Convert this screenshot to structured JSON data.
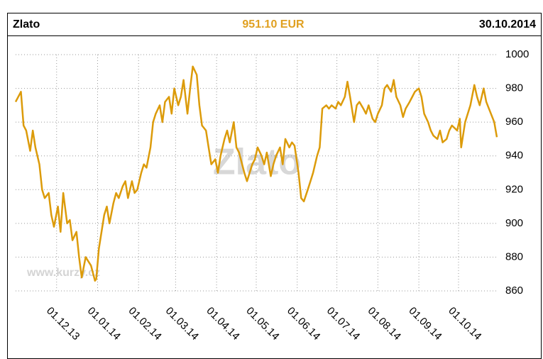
{
  "chart_data": {
    "type": "line",
    "title": "Zlato",
    "subtitle": "951.10 EUR",
    "date": "30.10.2014",
    "watermark": "Zlato",
    "source": "www.kurzy.cz",
    "xlim": [
      "31.10.13",
      "30.10.14"
    ],
    "xticks": [
      "01.12.13",
      "01.01.14",
      "01.02.14",
      "01.03.14",
      "01.04.14",
      "01.05.14",
      "01.06.14",
      "01.07.14",
      "01.08.14",
      "01.09.14",
      "01.10.14"
    ],
    "ylim": [
      860,
      1000
    ],
    "yticks": [
      860,
      880,
      900,
      920,
      940,
      960,
      980,
      1000
    ],
    "grid": true,
    "series": [
      {
        "name": "Zlato",
        "color": "#dc9b0a",
        "x": [
          "31.10.13",
          "04.11.13",
          "06.11.13",
          "08.11.13",
          "11.11.13",
          "13.11.13",
          "15.11.13",
          "18.11.13",
          "20.11.13",
          "22.11.13",
          "25.11.13",
          "27.11.13",
          "29.11.13",
          "02.12.13",
          "04.12.13",
          "06.12.13",
          "09.12.13",
          "11.12.13",
          "13.12.13",
          "16.12.13",
          "18.12.13",
          "20.12.13",
          "23.12.13",
          "27.12.13",
          "30.12.13",
          "31.12.13",
          "02.01.14",
          "06.01.14",
          "08.01.14",
          "10.01.14",
          "13.01.14",
          "15.01.14",
          "17.01.14",
          "20.01.14",
          "22.01.14",
          "24.01.14",
          "27.01.14",
          "29.01.14",
          "31.01.14",
          "03.02.14",
          "05.02.14",
          "07.02.14",
          "10.02.14",
          "12.02.14",
          "14.02.14",
          "17.02.14",
          "19.02.14",
          "21.02.14",
          "24.02.14",
          "26.02.14",
          "28.02.14",
          "03.03.14",
          "05.03.14",
          "07.03.14",
          "10.03.14",
          "12.03.14",
          "14.03.14",
          "17.03.14",
          "19.03.14",
          "21.03.14",
          "24.03.14",
          "26.03.14",
          "28.03.14",
          "31.03.14",
          "02.04.14",
          "04.04.14",
          "07.04.14",
          "09.04.14",
          "11.04.14",
          "14.04.14",
          "16.04.14",
          "18.04.14",
          "22.04.14",
          "24.04.14",
          "28.04.14",
          "30.04.14",
          "02.05.14",
          "05.05.14",
          "07.05.14",
          "09.05.14",
          "12.05.14",
          "14.05.14",
          "16.05.14",
          "19.05.14",
          "21.05.14",
          "23.05.14",
          "26.05.14",
          "28.05.14",
          "30.05.14",
          "02.06.14",
          "04.06.14",
          "06.06.14",
          "09.06.14",
          "11.06.14",
          "13.06.14",
          "16.06.14",
          "18.06.14",
          "20.06.14",
          "23.06.14",
          "25.06.14",
          "27.06.14",
          "30.06.14",
          "02.07.14",
          "04.07.14",
          "07.07.14",
          "09.07.14",
          "11.07.14",
          "14.07.14",
          "16.07.14",
          "18.07.14",
          "21.07.14",
          "23.07.14",
          "25.07.14",
          "28.07.14",
          "30.07.14",
          "01.08.14",
          "04.08.14",
          "06.08.14",
          "08.08.14",
          "11.08.14",
          "13.08.14",
          "15.08.14",
          "18.08.14",
          "20.08.14",
          "22.08.14",
          "25.08.14",
          "27.08.14",
          "29.08.14",
          "01.09.14",
          "03.09.14",
          "05.09.14",
          "08.09.14",
          "10.09.14",
          "12.09.14",
          "15.09.14",
          "17.09.14",
          "19.09.14",
          "22.09.14",
          "24.09.14",
          "26.09.14",
          "30.09.14",
          "02.10.14",
          "03.10.14",
          "06.10.14",
          "08.10.14",
          "10.10.14",
          "13.10.14",
          "15.10.14",
          "17.10.14",
          "20.10.14",
          "22.10.14",
          "24.10.14",
          "28.10.14",
          "30.10.14"
        ],
        "values": [
          972,
          978,
          958,
          955,
          943,
          955,
          945,
          935,
          920,
          915,
          918,
          905,
          898,
          910,
          895,
          918,
          900,
          902,
          890,
          895,
          880,
          868,
          880,
          875,
          866,
          867,
          885,
          905,
          910,
          900,
          912,
          918,
          915,
          922,
          925,
          915,
          925,
          918,
          920,
          930,
          935,
          933,
          945,
          960,
          965,
          970,
          960,
          972,
          975,
          965,
          980,
          970,
          975,
          985,
          965,
          980,
          993,
          988,
          970,
          958,
          955,
          945,
          935,
          938,
          930,
          940,
          950,
          955,
          948,
          960,
          945,
          942,
          930,
          925,
          935,
          938,
          945,
          940,
          935,
          942,
          928,
          935,
          940,
          945,
          935,
          950,
          945,
          948,
          946,
          930,
          915,
          913,
          920,
          925,
          930,
          940,
          945,
          968,
          970,
          968,
          970,
          968,
          972,
          970,
          975,
          984,
          975,
          960,
          970,
          972,
          968,
          965,
          970,
          962,
          960,
          965,
          970,
          980,
          982,
          978,
          985,
          975,
          970,
          963,
          968,
          972,
          975,
          978,
          980,
          975,
          965,
          960,
          955,
          952,
          950,
          955,
          948,
          950,
          955,
          958,
          955,
          962,
          945,
          960,
          965,
          970,
          982,
          975,
          970,
          980,
          972,
          968,
          960,
          951.1
        ]
      }
    ]
  }
}
